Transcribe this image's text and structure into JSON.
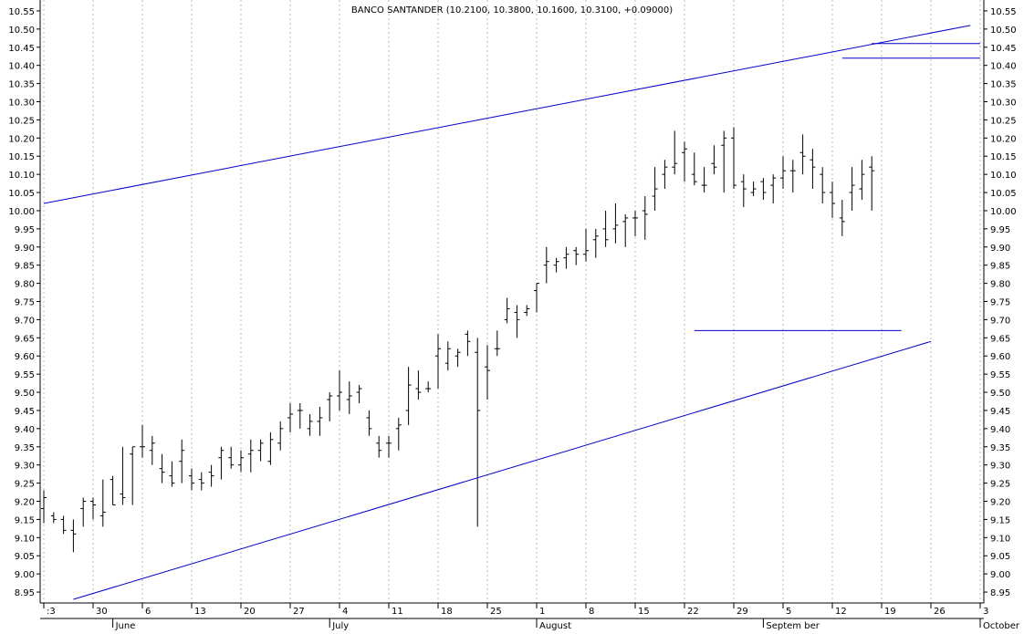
{
  "chart_data": {
    "type": "ohlc",
    "title": "BANCO SANTANDER (10.2100, 10.3800, 10.1600, 10.3100, +0.09000)",
    "xlabel": "",
    "ylabel": "",
    "ylim": [
      8.92,
      10.58
    ],
    "y_ticks": [
      "10.55",
      "10.50",
      "10.45",
      "10.40",
      "10.35",
      "10.30",
      "10.25",
      "10.20",
      "10.15",
      "10.10",
      "10.05",
      "10.00",
      "9.95",
      "9.90",
      "9.85",
      "9.80",
      "9.75",
      "9.70",
      "9.65",
      "9.60",
      "9.55",
      "9.50",
      "9.45",
      "9.40",
      "9.35",
      "9.30",
      "9.25",
      "9.20",
      "9.15",
      "9.10",
      "9.05",
      "9.00",
      "8.95"
    ],
    "x_ticks": [
      {
        "label": ":3",
        "date": "2011-05-23"
      },
      {
        "label": "30",
        "date": "2011-05-30"
      },
      {
        "label": "6",
        "date": "2011-06-06"
      },
      {
        "label": "13",
        "date": "2011-06-13"
      },
      {
        "label": "20",
        "date": "2011-06-20"
      },
      {
        "label": "27",
        "date": "2011-06-27"
      },
      {
        "label": "4",
        "date": "2011-07-04"
      },
      {
        "label": "11",
        "date": "2011-07-11"
      },
      {
        "label": "18",
        "date": "2011-07-18"
      },
      {
        "label": "25",
        "date": "2011-07-25"
      },
      {
        "label": "1",
        "date": "2011-08-01"
      },
      {
        "label": "8",
        "date": "2011-08-08"
      },
      {
        "label": "15",
        "date": "2011-08-15"
      },
      {
        "label": "22",
        "date": "2011-08-22"
      },
      {
        "label": "29",
        "date": "2011-08-29"
      },
      {
        "label": "5",
        "date": "2011-09-05"
      },
      {
        "label": "12",
        "date": "2011-09-12"
      },
      {
        "label": "19",
        "date": "2011-09-19"
      },
      {
        "label": "26",
        "date": "2011-09-26"
      },
      {
        "label": "3",
        "date": "2011-10-03"
      }
    ],
    "month_labels": [
      {
        "label": "June",
        "date": "2011-06-01"
      },
      {
        "label": "July",
        "date": "2011-07-01"
      },
      {
        "label": "August",
        "date": "2011-08-01"
      },
      {
        "label": "Septem ber",
        "date": "2011-09-01"
      },
      {
        "label": "October",
        "date": "2011-10-01"
      }
    ],
    "grid": "vertical dotted at weekly ticks",
    "bar_color": "#000000",
    "line_color": "#0000cc",
    "bars": [
      {
        "date": "2011-05-23",
        "o": 9.18,
        "h": 9.23,
        "l": 9.14,
        "c": 9.21
      },
      {
        "date": "2011-05-24",
        "o": 9.16,
        "h": 9.17,
        "l": 9.14,
        "c": 9.15
      },
      {
        "date": "2011-05-25",
        "o": 9.15,
        "h": 9.16,
        "l": 9.11,
        "c": 9.12
      },
      {
        "date": "2011-05-26",
        "o": 9.12,
        "h": 9.15,
        "l": 9.06,
        "c": 9.11
      },
      {
        "date": "2011-05-27",
        "o": 9.18,
        "h": 9.21,
        "l": 9.13,
        "c": 9.2
      },
      {
        "date": "2011-05-30",
        "o": 9.2,
        "h": 9.21,
        "l": 9.15,
        "c": 9.19
      },
      {
        "date": "2011-05-31",
        "o": 9.16,
        "h": 9.26,
        "l": 9.13,
        "c": 9.17
      },
      {
        "date": "2011-06-01",
        "o": 9.26,
        "h": 9.27,
        "l": 9.19,
        "c": 9.19
      },
      {
        "date": "2011-06-02",
        "o": 9.22,
        "h": 9.35,
        "l": 9.19,
        "c": 9.21
      },
      {
        "date": "2011-06-03",
        "o": 9.33,
        "h": 9.35,
        "l": 9.19,
        "c": 9.35
      },
      {
        "date": "2011-06-06",
        "o": 9.35,
        "h": 9.41,
        "l": 9.32,
        "c": 9.35
      },
      {
        "date": "2011-06-07",
        "o": 9.34,
        "h": 9.38,
        "l": 9.3,
        "c": 9.36
      },
      {
        "date": "2011-06-08",
        "o": 9.29,
        "h": 9.33,
        "l": 9.25,
        "c": 9.28
      },
      {
        "date": "2011-06-09",
        "o": 9.27,
        "h": 9.31,
        "l": 9.24,
        "c": 9.25
      },
      {
        "date": "2011-06-10",
        "o": 9.31,
        "h": 9.37,
        "l": 9.25,
        "c": 9.34
      },
      {
        "date": "2011-06-13",
        "o": 9.27,
        "h": 9.29,
        "l": 9.23,
        "c": 9.25
      },
      {
        "date": "2011-06-14",
        "o": 9.26,
        "h": 9.28,
        "l": 9.23,
        "c": 9.25
      },
      {
        "date": "2011-06-15",
        "o": 9.28,
        "h": 9.3,
        "l": 9.24,
        "c": 9.27
      },
      {
        "date": "2011-06-16",
        "o": 9.32,
        "h": 9.35,
        "l": 9.26,
        "c": 9.34
      },
      {
        "date": "2011-06-17",
        "o": 9.32,
        "h": 9.35,
        "l": 9.29,
        "c": 9.3
      },
      {
        "date": "2011-06-20",
        "o": 9.3,
        "h": 9.34,
        "l": 9.28,
        "c": 9.32
      },
      {
        "date": "2011-06-21",
        "o": 9.33,
        "h": 9.37,
        "l": 9.28,
        "c": 9.34
      },
      {
        "date": "2011-06-22",
        "o": 9.34,
        "h": 9.37,
        "l": 9.31,
        "c": 9.36
      },
      {
        "date": "2011-06-23",
        "o": 9.31,
        "h": 9.39,
        "l": 9.3,
        "c": 9.37
      },
      {
        "date": "2011-06-24",
        "o": 9.36,
        "h": 9.42,
        "l": 9.34,
        "c": 9.4
      },
      {
        "date": "2011-06-27",
        "o": 9.43,
        "h": 9.47,
        "l": 9.39,
        "c": 9.44
      },
      {
        "date": "2011-06-28",
        "o": 9.45,
        "h": 9.47,
        "l": 9.4,
        "c": 9.45
      },
      {
        "date": "2011-06-29",
        "o": 9.4,
        "h": 9.44,
        "l": 9.38,
        "c": 9.42
      },
      {
        "date": "2011-06-30",
        "o": 9.42,
        "h": 9.46,
        "l": 9.38,
        "c": 9.43
      },
      {
        "date": "2011-07-01",
        "o": 9.48,
        "h": 9.5,
        "l": 9.42,
        "c": 9.49
      },
      {
        "date": "2011-07-04",
        "o": 9.49,
        "h": 9.56,
        "l": 9.45,
        "c": 9.5
      },
      {
        "date": "2011-07-05",
        "o": 9.48,
        "h": 9.53,
        "l": 9.44,
        "c": 9.49
      },
      {
        "date": "2011-07-06",
        "o": 9.5,
        "h": 9.52,
        "l": 9.47,
        "c": 9.51
      },
      {
        "date": "2011-07-07",
        "o": 9.43,
        "h": 9.45,
        "l": 9.38,
        "c": 9.4
      },
      {
        "date": "2011-07-08",
        "o": 9.36,
        "h": 9.38,
        "l": 9.32,
        "c": 9.34
      },
      {
        "date": "2011-07-11",
        "o": 9.36,
        "h": 9.38,
        "l": 9.32,
        "c": 9.36
      },
      {
        "date": "2011-07-12",
        "o": 9.4,
        "h": 9.43,
        "l": 9.34,
        "c": 9.41
      },
      {
        "date": "2011-07-13",
        "o": 9.45,
        "h": 9.57,
        "l": 9.41,
        "c": 9.52
      },
      {
        "date": "2011-07-14",
        "o": 9.51,
        "h": 9.56,
        "l": 9.48,
        "c": 9.5
      },
      {
        "date": "2011-07-15",
        "o": 9.51,
        "h": 9.53,
        "l": 9.5,
        "c": 9.51
      },
      {
        "date": "2011-07-18",
        "o": 9.6,
        "h": 9.66,
        "l": 9.51,
        "c": 9.62
      },
      {
        "date": "2011-07-19",
        "o": 9.58,
        "h": 9.64,
        "l": 9.56,
        "c": 9.62
      },
      {
        "date": "2011-07-20",
        "o": 9.6,
        "h": 9.62,
        "l": 9.57,
        "c": 9.61
      },
      {
        "date": "2011-07-21",
        "o": 9.66,
        "h": 9.67,
        "l": 9.6,
        "c": 9.64
      },
      {
        "date": "2011-07-22",
        "o": 9.61,
        "h": 9.65,
        "l": 9.13,
        "c": 9.45
      },
      {
        "date": "2011-07-25",
        "o": 9.57,
        "h": 9.63,
        "l": 9.48,
        "c": 9.56
      },
      {
        "date": "2011-07-26",
        "o": 9.62,
        "h": 9.67,
        "l": 9.6,
        "c": 9.62
      },
      {
        "date": "2011-07-27",
        "o": 9.7,
        "h": 9.76,
        "l": 9.69,
        "c": 9.73
      },
      {
        "date": "2011-07-28",
        "o": 9.72,
        "h": 9.74,
        "l": 9.65,
        "c": 9.7
      },
      {
        "date": "2011-07-29",
        "o": 9.72,
        "h": 9.74,
        "l": 9.71,
        "c": 9.73
      },
      {
        "date": "2011-08-01",
        "o": 9.78,
        "h": 9.8,
        "l": 9.72,
        "c": 9.8
      },
      {
        "date": "2011-08-02",
        "o": 9.85,
        "h": 9.9,
        "l": 9.8,
        "c": 9.86
      },
      {
        "date": "2011-08-03",
        "o": 9.85,
        "h": 9.87,
        "l": 9.83,
        "c": 9.86
      },
      {
        "date": "2011-08-04",
        "o": 9.87,
        "h": 9.9,
        "l": 9.84,
        "c": 9.88
      },
      {
        "date": "2011-08-05",
        "o": 9.89,
        "h": 9.9,
        "l": 9.85,
        "c": 9.88
      },
      {
        "date": "2011-08-08",
        "o": 9.88,
        "h": 9.95,
        "l": 9.86,
        "c": 9.89
      },
      {
        "date": "2011-08-09",
        "o": 9.92,
        "h": 9.95,
        "l": 9.87,
        "c": 9.93
      },
      {
        "date": "2011-08-10",
        "o": 9.95,
        "h": 10.0,
        "l": 9.9,
        "c": 9.92
      },
      {
        "date": "2011-08-11",
        "o": 9.95,
        "h": 10.02,
        "l": 9.91,
        "c": 9.96
      },
      {
        "date": "2011-08-12",
        "o": 9.97,
        "h": 9.99,
        "l": 9.9,
        "c": 9.98
      },
      {
        "date": "2011-08-15",
        "o": 9.98,
        "h": 10.0,
        "l": 9.93,
        "c": 9.98
      },
      {
        "date": "2011-08-16",
        "o": 10.0,
        "h": 10.04,
        "l": 9.92,
        "c": 9.99
      },
      {
        "date": "2011-08-17",
        "o": 10.04,
        "h": 10.12,
        "l": 10.0,
        "c": 10.06
      },
      {
        "date": "2011-08-18",
        "o": 10.1,
        "h": 10.14,
        "l": 10.06,
        "c": 10.12
      },
      {
        "date": "2011-08-19",
        "o": 10.12,
        "h": 10.22,
        "l": 10.1,
        "c": 10.13
      },
      {
        "date": "2011-08-22",
        "o": 10.16,
        "h": 10.19,
        "l": 10.08,
        "c": 10.17
      },
      {
        "date": "2011-08-23",
        "o": 10.1,
        "h": 10.16,
        "l": 10.07,
        "c": 10.08
      },
      {
        "date": "2011-08-24",
        "o": 10.07,
        "h": 10.12,
        "l": 10.05,
        "c": 10.07
      },
      {
        "date": "2011-08-25",
        "o": 10.13,
        "h": 10.18,
        "l": 10.1,
        "c": 10.12
      },
      {
        "date": "2011-08-26",
        "o": 10.18,
        "h": 10.22,
        "l": 10.05,
        "c": 10.2
      },
      {
        "date": "2011-08-29",
        "o": 10.2,
        "h": 10.23,
        "l": 10.06,
        "c": 10.07
      },
      {
        "date": "2011-08-30",
        "o": 10.08,
        "h": 10.1,
        "l": 10.01,
        "c": 10.06
      },
      {
        "date": "2011-08-31",
        "o": 10.05,
        "h": 10.08,
        "l": 10.04,
        "c": 10.06
      },
      {
        "date": "2011-09-01",
        "o": 10.08,
        "h": 10.09,
        "l": 10.03,
        "c": 10.05
      },
      {
        "date": "2011-09-02",
        "o": 10.07,
        "h": 10.1,
        "l": 10.02,
        "c": 10.09
      },
      {
        "date": "2011-09-05",
        "o": 10.09,
        "h": 10.15,
        "l": 10.06,
        "c": 10.11
      },
      {
        "date": "2011-09-06",
        "o": 10.11,
        "h": 10.14,
        "l": 10.05,
        "c": 10.11
      },
      {
        "date": "2011-09-07",
        "o": 10.16,
        "h": 10.21,
        "l": 10.1,
        "c": 10.15
      },
      {
        "date": "2011-09-08",
        "o": 10.14,
        "h": 10.17,
        "l": 10.06,
        "c": 10.12
      },
      {
        "date": "2011-09-09",
        "o": 10.1,
        "h": 10.12,
        "l": 10.02,
        "c": 10.05
      },
      {
        "date": "2011-09-12",
        "o": 10.05,
        "h": 10.08,
        "l": 9.98,
        "c": 10.02
      },
      {
        "date": "2011-09-13",
        "o": 9.98,
        "h": 10.03,
        "l": 9.93,
        "c": 9.97
      },
      {
        "date": "2011-09-14",
        "o": 10.05,
        "h": 10.12,
        "l": 10.0,
        "c": 10.07
      },
      {
        "date": "2011-09-15",
        "o": 10.06,
        "h": 10.14,
        "l": 10.03,
        "c": 10.1
      },
      {
        "date": "2011-09-16",
        "o": 10.12,
        "h": 10.15,
        "l": 10.0,
        "c": 10.11
      }
    ],
    "annotations": [
      {
        "type": "trendline",
        "label": "upper",
        "from": {
          "date": "2011-05-23",
          "value": 10.02
        },
        "to": {
          "date": "2011-09-30",
          "value": 10.51
        }
      },
      {
        "type": "trendline",
        "label": "lower",
        "from": {
          "date": "2011-05-26",
          "value": 8.93
        },
        "to": {
          "date": "2011-09-26",
          "value": 9.64
        }
      },
      {
        "type": "horizontal",
        "value": 9.67,
        "from": "2011-08-23",
        "to": "2011-09-21"
      },
      {
        "type": "horizontal",
        "value": 10.42,
        "from": "2011-09-13",
        "to": "2011-10-03"
      },
      {
        "type": "horizontal",
        "value": 10.46,
        "from": "2011-09-16",
        "to": "2011-10-03"
      }
    ]
  }
}
